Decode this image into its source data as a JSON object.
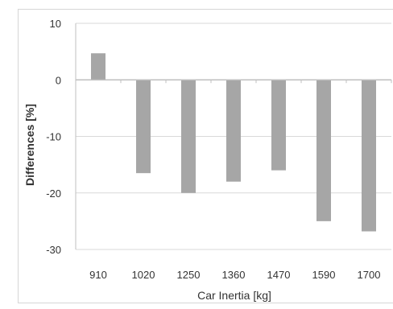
{
  "chart_data": {
    "type": "bar",
    "title": "",
    "xlabel": "Car Inertia [kg]",
    "ylabel": "Differences [%]",
    "categories": [
      "910",
      "1020",
      "1250",
      "1360",
      "1470",
      "1590",
      "1700"
    ],
    "values": [
      4.7,
      -16.5,
      -20.0,
      -18.0,
      -16.0,
      -25.0,
      -26.8
    ],
    "ylim": [
      -30,
      10
    ],
    "yticks": [
      10,
      0,
      -10,
      -20,
      -30
    ],
    "grid": true,
    "legend": "none",
    "colors": {
      "bar": "#a6a6a6",
      "grid": "#d9d9d9",
      "axis": "#bfbfbf"
    }
  }
}
